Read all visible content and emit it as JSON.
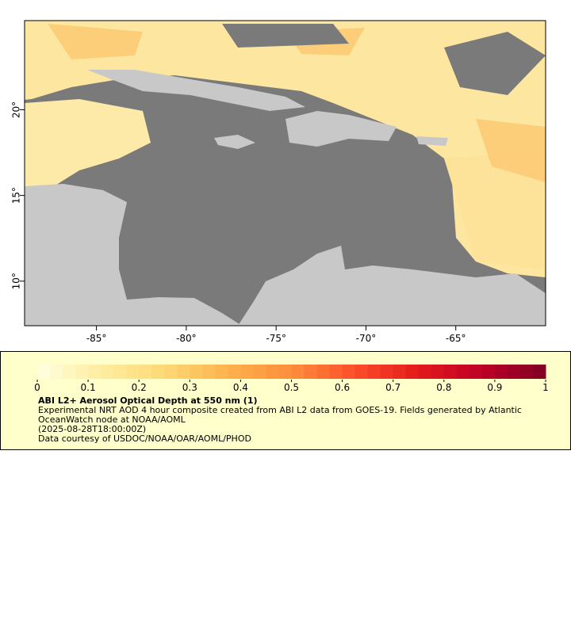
{
  "map": {
    "xlim": [
      -89,
      -60
    ],
    "ylim": [
      7.4,
      25.2
    ],
    "xticks": [
      {
        "value": -85,
        "label": "-85°"
      },
      {
        "value": -80,
        "label": "-80°"
      },
      {
        "value": -75,
        "label": "-75°"
      },
      {
        "value": -70,
        "label": "-70°"
      },
      {
        "value": -65,
        "label": "-65°"
      }
    ],
    "yticks": [
      {
        "value": 10,
        "label": "10°"
      },
      {
        "value": 15,
        "label": "15°"
      },
      {
        "value": 20,
        "label": "20°"
      }
    ]
  },
  "colorbar": {
    "vlim": [
      0,
      1
    ],
    "ticks": [
      0,
      0.1,
      0.2,
      0.3,
      0.4,
      0.5,
      0.6,
      0.7,
      0.8,
      0.9,
      1
    ],
    "colors": [
      "#ffffe0",
      "#ffeda0",
      "#fed976",
      "#feb24c",
      "#fd8d3c",
      "#fc4e2a",
      "#e31a1c",
      "#bd0026",
      "#800026"
    ]
  },
  "legend": {
    "title": "ABI L2+ Aerosol Optical Depth at 550 nm (1)",
    "lines": [
      "Experimental NRT AOD 4 hour composite created from ABI L2 data from GOES-19. Fields generated by Atlantic OceanWatch node at NOAA/AOML",
      "(2025-08-28T18:00:00Z)",
      "Data courtesy of USDOC/NOAA/OAR/AOML/PHOD"
    ]
  }
}
